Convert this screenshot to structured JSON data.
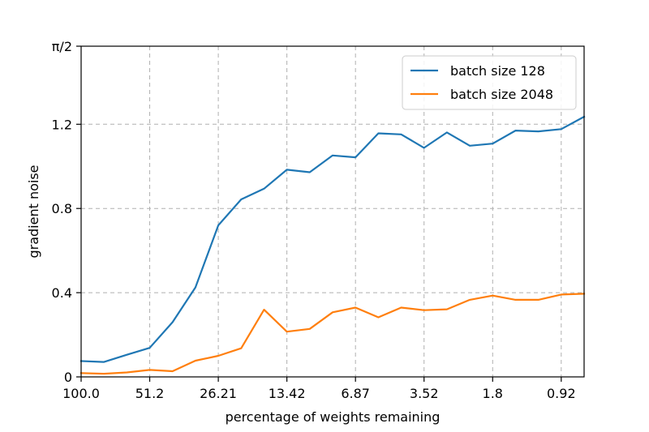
{
  "chart_data": {
    "type": "line",
    "xlabel": "percentage of weights remaining",
    "ylabel": "gradient noise",
    "x_tick_labels": [
      "100.0",
      "51.2",
      "26.21",
      "13.42",
      "6.87",
      "3.52",
      "1.8",
      "0.92"
    ],
    "y_tick_labels": [
      "0",
      "0.4",
      "0.8",
      "1.2",
      "π/2"
    ],
    "y_tick_values": [
      0,
      0.4,
      0.8,
      1.2,
      1.5708
    ],
    "ylim": [
      0,
      1.5708
    ],
    "x_scale": "log",
    "grid": true,
    "legend_position": "top-right",
    "x": [
      100.0,
      80.0,
      64.0,
      51.2,
      40.96,
      32.77,
      26.21,
      20.97,
      16.78,
      13.42,
      10.74,
      8.59,
      6.87,
      5.5,
      4.4,
      3.52,
      2.81,
      2.25,
      1.8,
      1.44,
      1.15,
      0.92,
      0.74
    ],
    "series": [
      {
        "name": "batch size 128",
        "color": "#1f77b4",
        "values": [
          0.075,
          0.071,
          0.105,
          0.138,
          0.26,
          0.425,
          0.72,
          0.843,
          0.894,
          0.984,
          0.972,
          1.052,
          1.043,
          1.157,
          1.152,
          1.088,
          1.161,
          1.098,
          1.108,
          1.17,
          1.166,
          1.177,
          1.236
        ]
      },
      {
        "name": "batch size 2048",
        "color": "#ff7f0e",
        "values": [
          0.018,
          0.015,
          0.021,
          0.033,
          0.027,
          0.077,
          0.1,
          0.136,
          0.319,
          0.215,
          0.228,
          0.307,
          0.329,
          0.283,
          0.329,
          0.317,
          0.321,
          0.366,
          0.386,
          0.366,
          0.366,
          0.391,
          0.395
        ]
      }
    ]
  }
}
